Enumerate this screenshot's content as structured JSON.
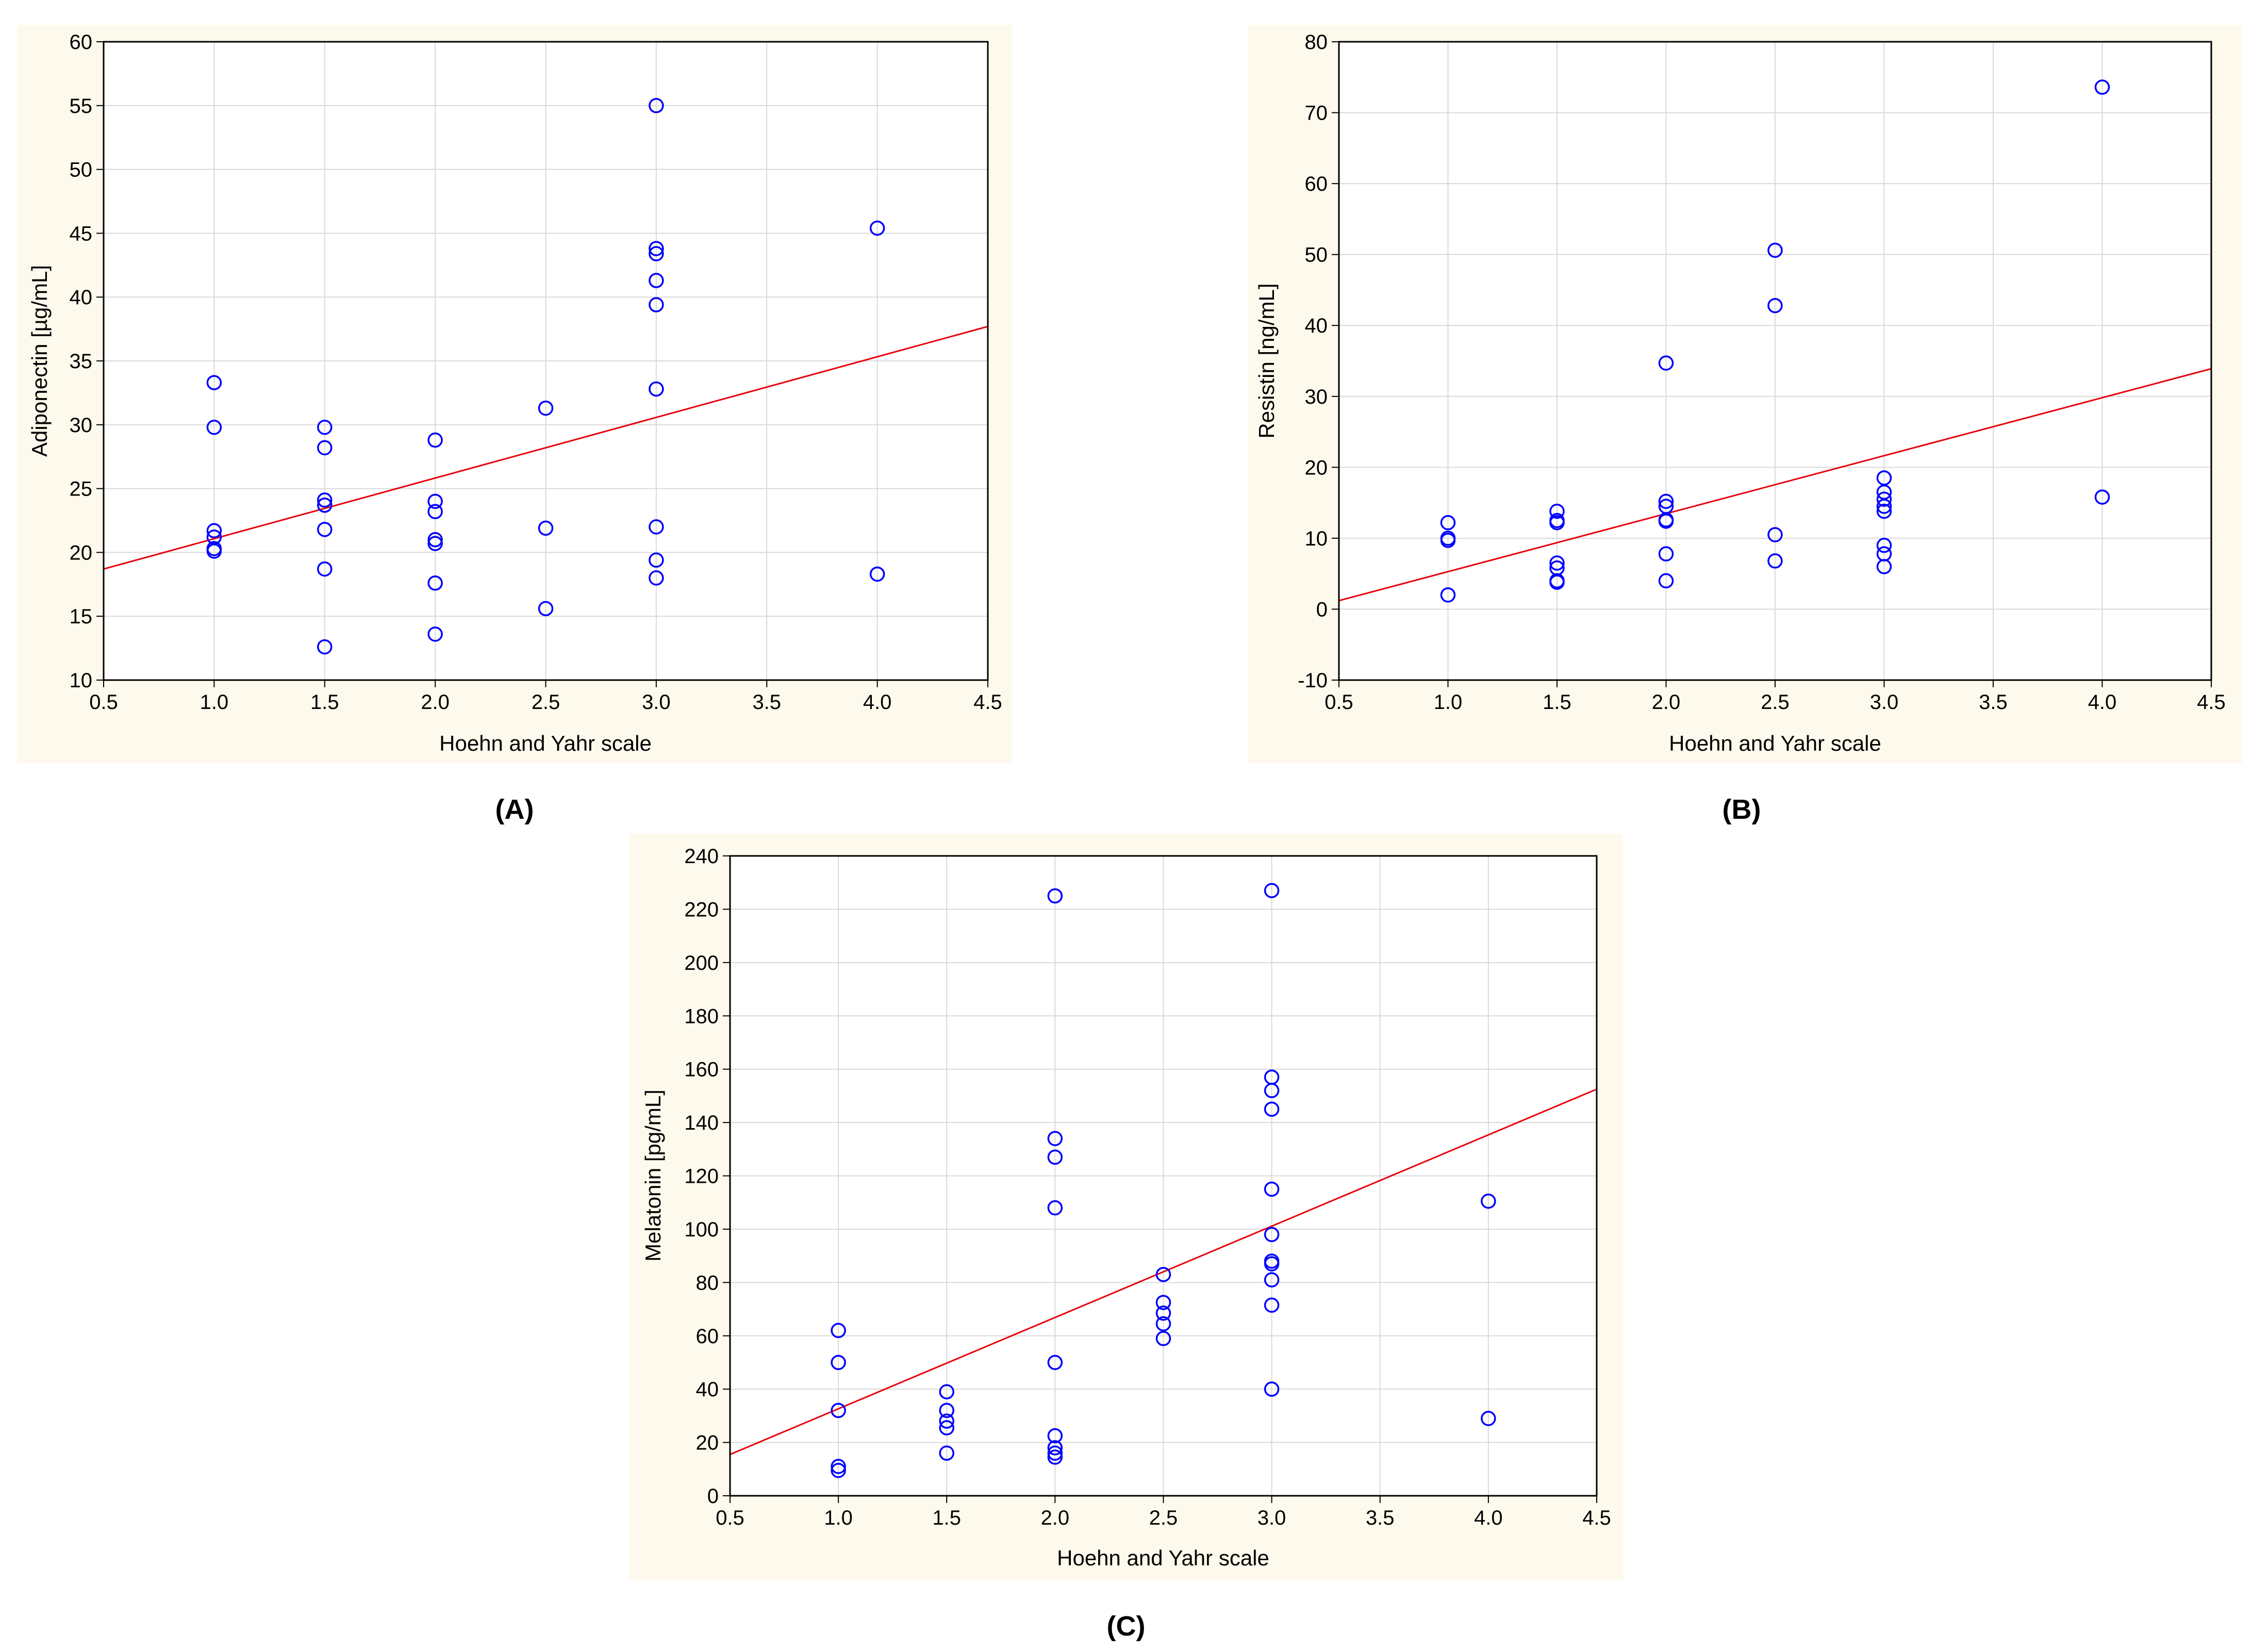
{
  "figure": {
    "panel_labels": [
      "(A)",
      "(B)",
      "(C)"
    ],
    "colors": {
      "panel_background": "#fdf9ec",
      "plot_background": "#ffffff",
      "grid": "#d9d9d9",
      "axis": "#000000",
      "points": "#0000ff",
      "regression": "#e8000b"
    }
  },
  "chart_data": [
    {
      "type": "scatter",
      "panel": "(A)",
      "title": "",
      "xlabel": "Hoehn and Yahr scale",
      "ylabel": "Adiponectin [µg/mL]",
      "xlim": [
        0.5,
        4.5
      ],
      "ylim": [
        10,
        60
      ],
      "xticks": [
        0.5,
        1.0,
        1.5,
        2.0,
        2.5,
        3.0,
        3.5,
        4.0,
        4.5
      ],
      "xtick_labels": [
        "0.5",
        "1.0",
        "1.5",
        "2.0",
        "2.5",
        "3.0",
        "3.5",
        "4.0",
        "4.5"
      ],
      "yticks": [
        10,
        15,
        20,
        25,
        30,
        35,
        40,
        45,
        50,
        55,
        60
      ],
      "ytick_labels": [
        "10",
        "15",
        "20",
        "25",
        "30",
        "35",
        "40",
        "45",
        "50",
        "55",
        "60"
      ],
      "grid": true,
      "points": [
        [
          1.0,
          33.3
        ],
        [
          1.0,
          29.8
        ],
        [
          1.0,
          21.7
        ],
        [
          1.0,
          21.2
        ],
        [
          1.0,
          20.3
        ],
        [
          1.0,
          20.1
        ],
        [
          1.5,
          29.8
        ],
        [
          1.5,
          28.2
        ],
        [
          1.5,
          24.1
        ],
        [
          1.5,
          23.7
        ],
        [
          1.5,
          21.8
        ],
        [
          1.5,
          18.7
        ],
        [
          1.5,
          12.6
        ],
        [
          2.0,
          28.8
        ],
        [
          2.0,
          24.0
        ],
        [
          2.0,
          23.2
        ],
        [
          2.0,
          21.0
        ],
        [
          2.0,
          20.7
        ],
        [
          2.0,
          17.6
        ],
        [
          2.0,
          13.6
        ],
        [
          2.5,
          31.3
        ],
        [
          2.5,
          21.9
        ],
        [
          2.5,
          15.6
        ],
        [
          3.0,
          55.0
        ],
        [
          3.0,
          43.8
        ],
        [
          3.0,
          43.4
        ],
        [
          3.0,
          41.3
        ],
        [
          3.0,
          39.4
        ],
        [
          3.0,
          32.8
        ],
        [
          3.0,
          22.0
        ],
        [
          3.0,
          19.4
        ],
        [
          3.0,
          18.0
        ],
        [
          4.0,
          45.4
        ],
        [
          4.0,
          18.3
        ]
      ],
      "regression": {
        "x": [
          0.5,
          4.5
        ],
        "y": [
          18.7,
          37.7
        ]
      }
    },
    {
      "type": "scatter",
      "panel": "(B)",
      "title": "",
      "xlabel": "Hoehn and Yahr scale",
      "ylabel": "Resistin [ng/mL]",
      "xlim": [
        0.5,
        4.5
      ],
      "ylim": [
        -10,
        80
      ],
      "xticks": [
        0.5,
        1.0,
        1.5,
        2.0,
        2.5,
        3.0,
        3.5,
        4.0,
        4.5
      ],
      "xtick_labels": [
        "0.5",
        "1.0",
        "1.5",
        "2.0",
        "2.5",
        "3.0",
        "3.5",
        "4.0",
        "4.5"
      ],
      "yticks": [
        -10,
        0,
        10,
        20,
        30,
        40,
        50,
        60,
        70,
        80
      ],
      "ytick_labels": [
        "-10",
        "0",
        "10",
        "20",
        "30",
        "40",
        "50",
        "60",
        "70",
        "80"
      ],
      "grid": true,
      "points": [
        [
          1.0,
          12.2
        ],
        [
          1.0,
          10.0
        ],
        [
          1.0,
          9.7
        ],
        [
          1.0,
          2.0
        ],
        [
          1.5,
          13.8
        ],
        [
          1.5,
          12.5
        ],
        [
          1.5,
          12.2
        ],
        [
          1.5,
          6.5
        ],
        [
          1.5,
          5.8
        ],
        [
          1.5,
          4.0
        ],
        [
          1.5,
          3.8
        ],
        [
          2.0,
          34.7
        ],
        [
          2.0,
          15.2
        ],
        [
          2.0,
          14.5
        ],
        [
          2.0,
          12.6
        ],
        [
          2.0,
          12.4
        ],
        [
          2.0,
          7.8
        ],
        [
          2.0,
          4.0
        ],
        [
          2.5,
          50.6
        ],
        [
          2.5,
          42.8
        ],
        [
          2.5,
          10.5
        ],
        [
          2.5,
          6.8
        ],
        [
          3.0,
          18.5
        ],
        [
          3.0,
          16.5
        ],
        [
          3.0,
          15.5
        ],
        [
          3.0,
          14.5
        ],
        [
          3.0,
          13.8
        ],
        [
          3.0,
          9.0
        ],
        [
          3.0,
          7.8
        ],
        [
          3.0,
          6.0
        ],
        [
          4.0,
          73.6
        ],
        [
          4.0,
          15.8
        ]
      ],
      "regression": {
        "x": [
          0.5,
          4.5
        ],
        "y": [
          1.2,
          33.9
        ]
      }
    },
    {
      "type": "scatter",
      "panel": "(C)",
      "title": "",
      "xlabel": "Hoehn and Yahr scale",
      "ylabel": "Melatonin [pg/mL]",
      "xlim": [
        0.5,
        4.5
      ],
      "ylim": [
        0,
        240
      ],
      "xticks": [
        0.5,
        1.0,
        1.5,
        2.0,
        2.5,
        3.0,
        3.5,
        4.0,
        4.5
      ],
      "xtick_labels": [
        "0.5",
        "1.0",
        "1.5",
        "2.0",
        "2.5",
        "3.0",
        "3.5",
        "4.0",
        "4.5"
      ],
      "yticks": [
        0,
        20,
        40,
        60,
        80,
        100,
        120,
        140,
        160,
        180,
        200,
        220,
        240
      ],
      "ytick_labels": [
        "0",
        "20",
        "40",
        "60",
        "80",
        "100",
        "120",
        "140",
        "160",
        "180",
        "200",
        "220",
        "240"
      ],
      "grid": true,
      "points": [
        [
          1.0,
          62
        ],
        [
          1.0,
          50
        ],
        [
          1.0,
          32
        ],
        [
          1.0,
          11
        ],
        [
          1.0,
          9.5
        ],
        [
          1.5,
          39
        ],
        [
          1.5,
          32
        ],
        [
          1.5,
          28
        ],
        [
          1.5,
          25.5
        ],
        [
          1.5,
          16
        ],
        [
          2.0,
          225
        ],
        [
          2.0,
          134
        ],
        [
          2.0,
          127
        ],
        [
          2.0,
          108
        ],
        [
          2.0,
          50
        ],
        [
          2.0,
          22.5
        ],
        [
          2.0,
          18
        ],
        [
          2.0,
          16
        ],
        [
          2.0,
          14.5
        ],
        [
          2.5,
          83
        ],
        [
          2.5,
          72.5
        ],
        [
          2.5,
          68.5
        ],
        [
          2.5,
          64.5
        ],
        [
          2.5,
          59
        ],
        [
          3.0,
          227
        ],
        [
          3.0,
          157
        ],
        [
          3.0,
          152
        ],
        [
          3.0,
          145
        ],
        [
          3.0,
          115
        ],
        [
          3.0,
          98
        ],
        [
          3.0,
          88
        ],
        [
          3.0,
          87
        ],
        [
          3.0,
          81
        ],
        [
          3.0,
          71.5
        ],
        [
          3.0,
          40
        ],
        [
          4.0,
          110.5
        ],
        [
          4.0,
          29
        ]
      ],
      "regression": {
        "x": [
          0.5,
          4.5
        ],
        "y": [
          15.5,
          152.5
        ]
      }
    }
  ]
}
